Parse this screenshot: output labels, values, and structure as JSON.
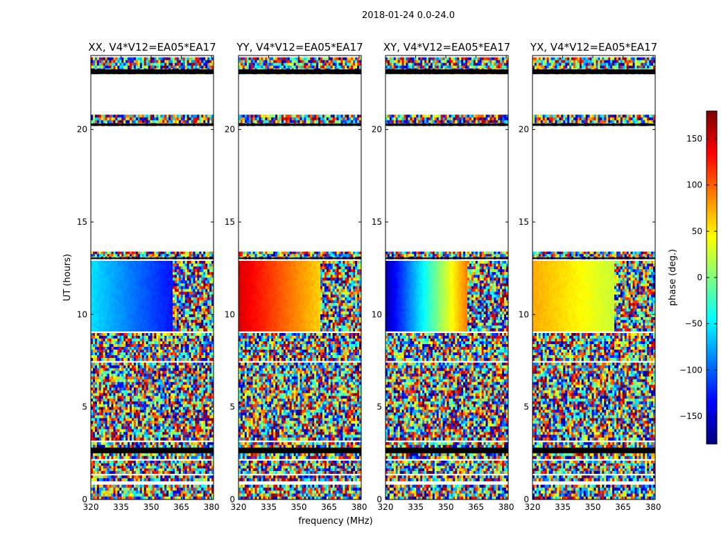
{
  "chart_data": {
    "type": "heatmap",
    "suptitle": "2018-01-24 0.0-24.0",
    "xlabel": "frequency (MHz)",
    "ylabel": "UT (hours)",
    "xlim": [
      320,
      381
    ],
    "ylim": [
      0,
      24
    ],
    "xticks": [
      320,
      335,
      350,
      365,
      380
    ],
    "yticks": [
      0,
      5,
      10,
      15,
      20
    ],
    "panels": [
      {
        "title": "XX, V4*V12=EA05*EA17",
        "pol": "XX",
        "phase_at_320": -55,
        "phase_at_360": -130
      },
      {
        "title": "YY, V4*V12=EA05*EA17",
        "pol": "YY",
        "phase_at_320": 150,
        "phase_at_360": 60
      },
      {
        "title": "XY, V4*V12=EA05*EA17",
        "pol": "XY",
        "phase_at_320": -165,
        "phase_at_360": 95
      },
      {
        "title": "YX, V4*V12=EA05*EA17",
        "pol": "YX",
        "phase_at_320": 75,
        "phase_at_360": 25
      }
    ],
    "rfi_band_start_mhz": 361,
    "smooth_block_hours": [
      9.1,
      12.9
    ],
    "data_blocks_hours": [
      [
        0,
        0.8
      ],
      [
        1.0,
        1.3
      ],
      [
        1.4,
        2.1
      ],
      [
        2.2,
        3.1
      ],
      [
        3.2,
        7.4
      ],
      [
        7.5,
        9.0
      ],
      [
        9.1,
        12.9
      ],
      [
        13.0,
        13.4
      ],
      [
        20.2,
        20.8
      ],
      [
        23.0,
        23.9
      ]
    ],
    "flagged_gaps_hours": [
      [
        13.4,
        20.2
      ],
      [
        20.8,
        23.0
      ]
    ],
    "colorbar": {
      "label": "phase (deg.)",
      "range": [
        -180,
        180
      ],
      "ticks": [
        150,
        100,
        50,
        0,
        -50,
        -100,
        -150
      ],
      "tick_labels": [
        "150",
        "100",
        "50",
        "0",
        "−50",
        "−100",
        "−150"
      ],
      "colormap": "jet"
    },
    "grid": false
  }
}
